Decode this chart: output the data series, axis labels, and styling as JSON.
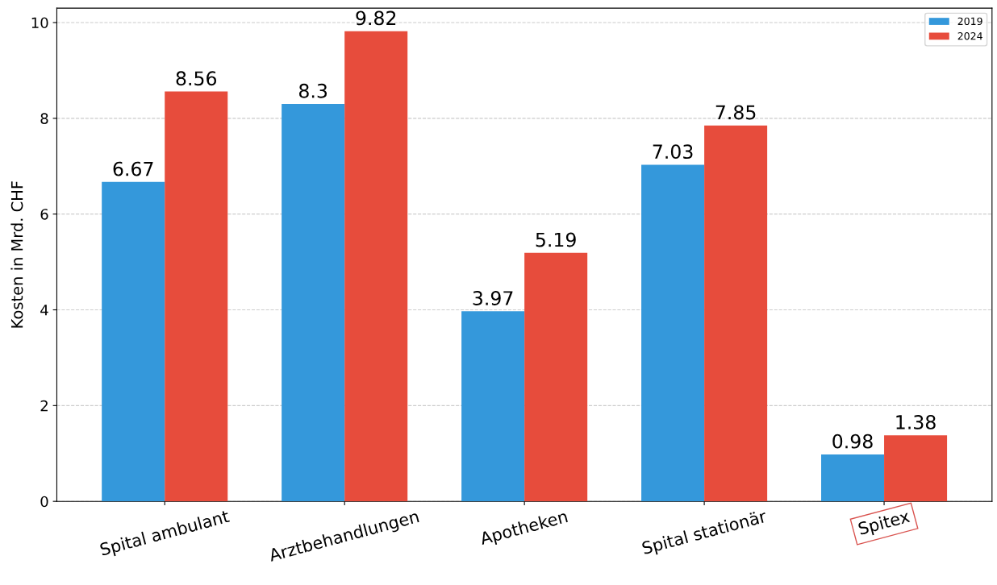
{
  "chart_data": {
    "type": "bar",
    "ylabel": "Kosten in Mrd. CHF",
    "categories": [
      "Spital ambulant",
      "Arztbehandlungen",
      "Apotheken",
      "Spital stationär",
      "Spitex"
    ],
    "series": [
      {
        "name": "2019",
        "color": "#3498db",
        "values": [
          6.67,
          8.3,
          3.97,
          7.03,
          0.98
        ]
      },
      {
        "name": "2024",
        "color": "#e74c3c",
        "values": [
          8.56,
          9.82,
          5.19,
          7.85,
          1.38
        ]
      }
    ],
    "ylim": [
      0,
      10.3
    ],
    "yticks": [
      0,
      2,
      4,
      6,
      8,
      10
    ],
    "grid": "y",
    "legend": "top right",
    "data_labels": true
  }
}
